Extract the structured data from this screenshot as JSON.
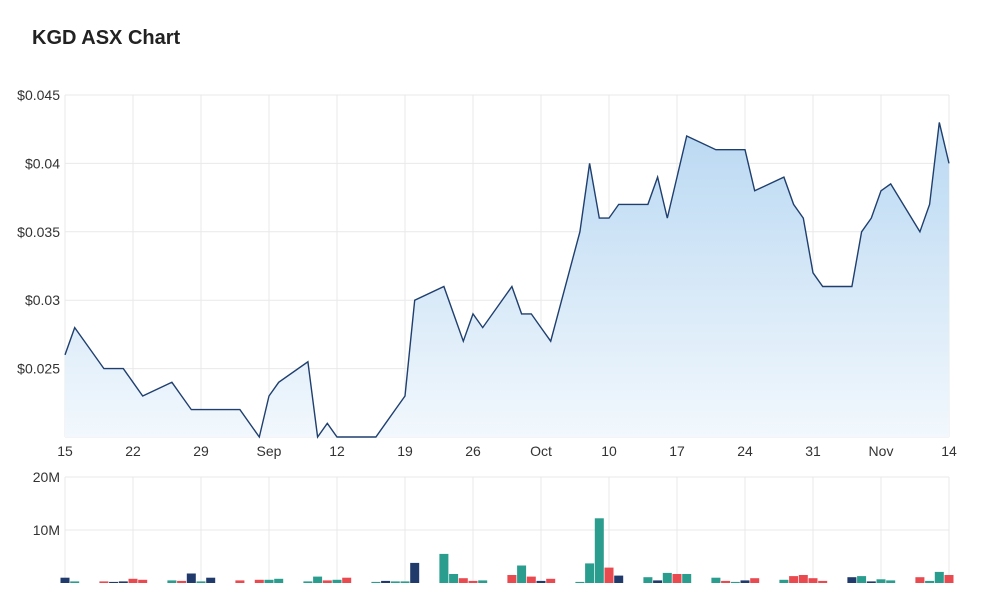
{
  "title": "KGD ASX Chart",
  "colors": {
    "price_line": "#1f3f6e",
    "area_top": "#b9d8f2",
    "area_bottom": "#f2f8fd",
    "grid": "#e9e9e9",
    "vol_navy": "#1f3a6b",
    "vol_teal": "#2a9d8f",
    "vol_red": "#e84a4f"
  },
  "chart_data": [
    {
      "type": "line",
      "name": "price",
      "y_tick_labels": [
        "$0.045",
        "$0.04",
        "$0.035",
        "$0.03",
        "$0.025"
      ],
      "y_ticks": [
        0.045,
        0.04,
        0.035,
        0.03,
        0.025
      ],
      "ylim": [
        0.02,
        0.045
      ],
      "x_tick_labels": [
        "15",
        "22",
        "29",
        "Sep",
        "12",
        "19",
        "26",
        "Oct",
        "10",
        "17",
        "24",
        "31",
        "Nov",
        "14"
      ],
      "x_tick_dates": [
        "2024-08-15",
        "2024-08-22",
        "2024-08-29",
        "2024-09-05",
        "2024-09-12",
        "2024-09-19",
        "2024-09-26",
        "2024-10-03",
        "2024-10-10",
        "2024-10-17",
        "2024-10-24",
        "2024-10-31",
        "2024-11-07",
        "2024-11-14"
      ],
      "x_range": [
        "2024-08-15",
        "2024-11-14"
      ],
      "grid": true,
      "points": [
        [
          "2024-08-15",
          0.026
        ],
        [
          "2024-08-16",
          0.028
        ],
        [
          "2024-08-19",
          0.025
        ],
        [
          "2024-08-20",
          0.025
        ],
        [
          "2024-08-21",
          0.025
        ],
        [
          "2024-08-22",
          0.024
        ],
        [
          "2024-08-23",
          0.023
        ],
        [
          "2024-08-26",
          0.024
        ],
        [
          "2024-08-27",
          0.023
        ],
        [
          "2024-08-28",
          0.022
        ],
        [
          "2024-08-29",
          0.022
        ],
        [
          "2024-08-30",
          0.022
        ],
        [
          "2024-09-02",
          0.022
        ],
        [
          "2024-09-04",
          0.02
        ],
        [
          "2024-09-05",
          0.023
        ],
        [
          "2024-09-06",
          0.024
        ],
        [
          "2024-09-09",
          0.0255
        ],
        [
          "2024-09-10",
          0.02
        ],
        [
          "2024-09-11",
          0.021
        ],
        [
          "2024-09-12",
          0.02
        ],
        [
          "2024-09-13",
          0.02
        ],
        [
          "2024-09-16",
          0.02
        ],
        [
          "2024-09-17",
          0.021
        ],
        [
          "2024-09-18",
          0.022
        ],
        [
          "2024-09-19",
          0.023
        ],
        [
          "2024-09-20",
          0.03
        ],
        [
          "2024-09-23",
          0.031
        ],
        [
          "2024-09-24",
          0.029
        ],
        [
          "2024-09-25",
          0.027
        ],
        [
          "2024-09-26",
          0.029
        ],
        [
          "2024-09-27",
          0.028
        ],
        [
          "2024-09-30",
          0.031
        ],
        [
          "2024-10-01",
          0.029
        ],
        [
          "2024-10-02",
          0.029
        ],
        [
          "2024-10-03",
          0.028
        ],
        [
          "2024-10-04",
          0.027
        ],
        [
          "2024-10-07",
          0.035
        ],
        [
          "2024-10-08",
          0.04
        ],
        [
          "2024-10-09",
          0.036
        ],
        [
          "2024-10-10",
          0.036
        ],
        [
          "2024-10-11",
          0.037
        ],
        [
          "2024-10-14",
          0.037
        ],
        [
          "2024-10-15",
          0.039
        ],
        [
          "2024-10-16",
          0.036
        ],
        [
          "2024-10-17",
          0.039
        ],
        [
          "2024-10-18",
          0.042
        ],
        [
          "2024-10-21",
          0.041
        ],
        [
          "2024-10-22",
          0.041
        ],
        [
          "2024-10-23",
          0.041
        ],
        [
          "2024-10-24",
          0.041
        ],
        [
          "2024-10-25",
          0.038
        ],
        [
          "2024-10-28",
          0.039
        ],
        [
          "2024-10-29",
          0.037
        ],
        [
          "2024-10-30",
          0.036
        ],
        [
          "2024-10-31",
          0.032
        ],
        [
          "2024-11-01",
          0.031
        ],
        [
          "2024-11-04",
          0.031
        ],
        [
          "2024-11-05",
          0.035
        ],
        [
          "2024-11-06",
          0.036
        ],
        [
          "2024-11-07",
          0.038
        ],
        [
          "2024-11-08",
          0.0385
        ],
        [
          "2024-11-11",
          0.035
        ],
        [
          "2024-11-12",
          0.037
        ],
        [
          "2024-11-13",
          0.043
        ],
        [
          "2024-11-14",
          0.04
        ]
      ]
    },
    {
      "type": "bar",
      "name": "volume",
      "y_tick_labels": [
        "20M",
        "10M"
      ],
      "y_ticks": [
        20000000,
        10000000
      ],
      "ylim": [
        0,
        20000000
      ],
      "grid": true,
      "bars": [
        [
          "2024-08-15",
          1000000,
          "navy"
        ],
        [
          "2024-08-16",
          300000,
          "teal"
        ],
        [
          "2024-08-19",
          300000,
          "red"
        ],
        [
          "2024-08-20",
          200000,
          "navy"
        ],
        [
          "2024-08-21",
          300000,
          "navy"
        ],
        [
          "2024-08-22",
          800000,
          "red"
        ],
        [
          "2024-08-23",
          600000,
          "red"
        ],
        [
          "2024-08-26",
          500000,
          "teal"
        ],
        [
          "2024-08-27",
          400000,
          "red"
        ],
        [
          "2024-08-28",
          1800000,
          "navy"
        ],
        [
          "2024-08-29",
          300000,
          "teal"
        ],
        [
          "2024-08-30",
          1000000,
          "navy"
        ],
        [
          "2024-09-02",
          500000,
          "red"
        ],
        [
          "2024-09-04",
          600000,
          "red"
        ],
        [
          "2024-09-05",
          600000,
          "teal"
        ],
        [
          "2024-09-06",
          800000,
          "teal"
        ],
        [
          "2024-09-09",
          300000,
          "teal"
        ],
        [
          "2024-09-10",
          1200000,
          "teal"
        ],
        [
          "2024-09-11",
          500000,
          "red"
        ],
        [
          "2024-09-12",
          600000,
          "teal"
        ],
        [
          "2024-09-13",
          1000000,
          "red"
        ],
        [
          "2024-09-16",
          200000,
          "teal"
        ],
        [
          "2024-09-17",
          400000,
          "navy"
        ],
        [
          "2024-09-18",
          300000,
          "teal"
        ],
        [
          "2024-09-19",
          300000,
          "teal"
        ],
        [
          "2024-09-20",
          3800000,
          "navy"
        ],
        [
          "2024-09-23",
          5500000,
          "teal"
        ],
        [
          "2024-09-24",
          1700000,
          "teal"
        ],
        [
          "2024-09-25",
          900000,
          "red"
        ],
        [
          "2024-09-26",
          400000,
          "red"
        ],
        [
          "2024-09-27",
          500000,
          "teal"
        ],
        [
          "2024-09-30",
          1500000,
          "red"
        ],
        [
          "2024-10-01",
          3300000,
          "teal"
        ],
        [
          "2024-10-02",
          1200000,
          "red"
        ],
        [
          "2024-10-03",
          400000,
          "navy"
        ],
        [
          "2024-10-04",
          800000,
          "red"
        ],
        [
          "2024-10-07",
          200000,
          "teal"
        ],
        [
          "2024-10-08",
          3700000,
          "teal"
        ],
        [
          "2024-10-09",
          12200000,
          "teal"
        ],
        [
          "2024-10-10",
          2900000,
          "red"
        ],
        [
          "2024-10-11",
          1400000,
          "navy"
        ],
        [
          "2024-10-14",
          1100000,
          "teal"
        ],
        [
          "2024-10-15",
          500000,
          "navy"
        ],
        [
          "2024-10-16",
          1900000,
          "teal"
        ],
        [
          "2024-10-17",
          1700000,
          "red"
        ],
        [
          "2024-10-18",
          1700000,
          "teal"
        ],
        [
          "2024-10-21",
          1000000,
          "teal"
        ],
        [
          "2024-10-22",
          400000,
          "red"
        ],
        [
          "2024-10-23",
          200000,
          "teal"
        ],
        [
          "2024-10-24",
          500000,
          "navy"
        ],
        [
          "2024-10-25",
          900000,
          "red"
        ],
        [
          "2024-10-28",
          600000,
          "teal"
        ],
        [
          "2024-10-29",
          1300000,
          "red"
        ],
        [
          "2024-10-30",
          1500000,
          "red"
        ],
        [
          "2024-10-31",
          900000,
          "red"
        ],
        [
          "2024-11-01",
          400000,
          "red"
        ],
        [
          "2024-11-04",
          1100000,
          "navy"
        ],
        [
          "2024-11-05",
          1300000,
          "teal"
        ],
        [
          "2024-11-06",
          300000,
          "navy"
        ],
        [
          "2024-11-07",
          700000,
          "teal"
        ],
        [
          "2024-11-08",
          500000,
          "teal"
        ],
        [
          "2024-11-11",
          1100000,
          "red"
        ],
        [
          "2024-11-12",
          400000,
          "teal"
        ],
        [
          "2024-11-13",
          2100000,
          "teal"
        ],
        [
          "2024-11-14",
          1500000,
          "red"
        ]
      ]
    }
  ]
}
